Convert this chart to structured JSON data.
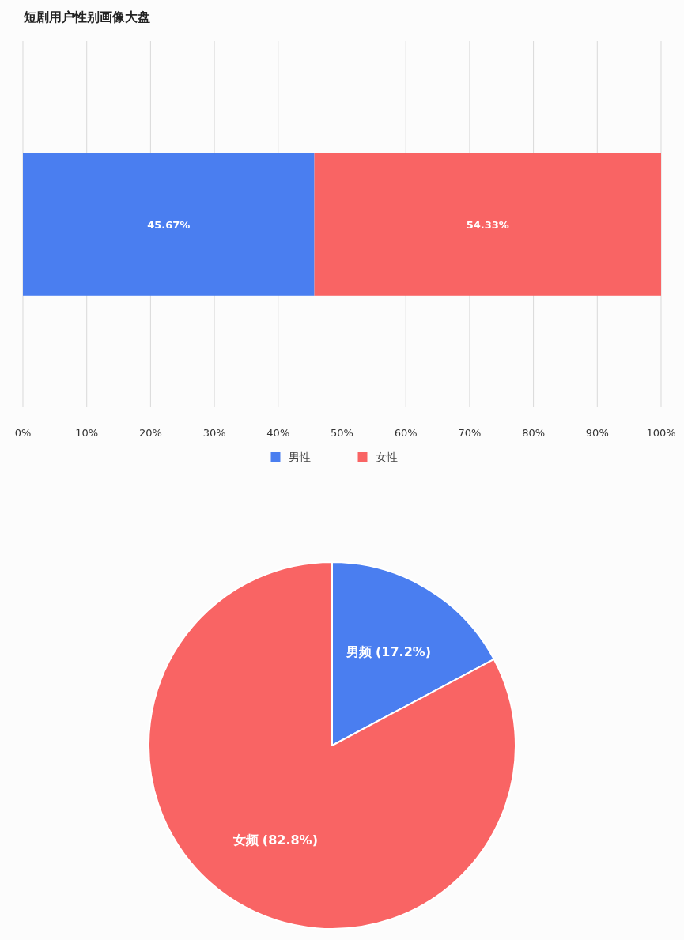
{
  "chart_data": [
    {
      "type": "bar",
      "orientation": "horizontal",
      "stacked": true,
      "title": "短剧用户性别画像大盘",
      "categories": [
        null
      ],
      "series": [
        {
          "name": "男性",
          "color": "#4a7ef0",
          "values": [
            45.67
          ],
          "value_labels": [
            "45.67%"
          ]
        },
        {
          "name": "女性",
          "color": "#f96464",
          "values": [
            54.33
          ],
          "value_labels": [
            "54.33%"
          ]
        }
      ],
      "xlim": [
        0,
        100
      ],
      "xticks": [
        {
          "value": 0,
          "label": "0%"
        },
        {
          "value": 10,
          "label": "10%"
        },
        {
          "value": 20,
          "label": "20%"
        },
        {
          "value": 30,
          "label": "30%"
        },
        {
          "value": 40,
          "label": "40%"
        },
        {
          "value": 50,
          "label": "50%"
        },
        {
          "value": 60,
          "label": "60%"
        },
        {
          "value": 70,
          "label": "70%"
        },
        {
          "value": 80,
          "label": "80%"
        },
        {
          "value": 90,
          "label": "90%"
        },
        {
          "value": 100,
          "label": "100%"
        }
      ],
      "grid": "x",
      "legend": "bottom"
    },
    {
      "type": "pie",
      "categories": [
        "男频",
        "女频"
      ],
      "values": [
        17.2,
        82.8
      ],
      "colors": [
        "#4a7ef0",
        "#f96464"
      ],
      "value_labels": [
        "(17.2%)",
        "(82.8%)"
      ]
    }
  ]
}
